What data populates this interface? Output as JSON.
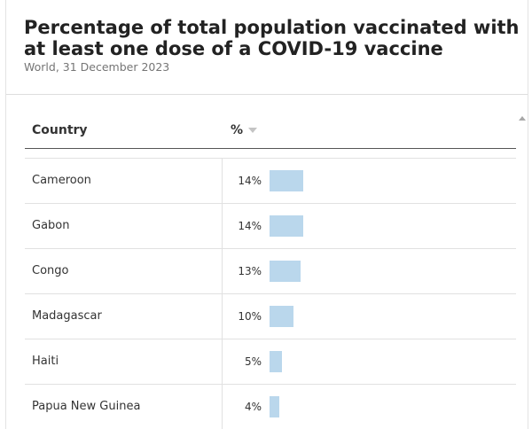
{
  "header": {
    "title": "Percentage of total population vaccinated with at least one dose of a COVID-19 vaccine",
    "subtitle": "World, 31 December 2023"
  },
  "table": {
    "col_country": "Country",
    "col_value": "%",
    "rows": [
      {
        "country": "Cameroon",
        "label": "14%",
        "value": 14
      },
      {
        "country": "Gabon",
        "label": "14%",
        "value": 14
      },
      {
        "country": "Congo",
        "label": "13%",
        "value": 13
      },
      {
        "country": "Madagascar",
        "label": "10%",
        "value": 10
      },
      {
        "country": "Haiti",
        "label": "5%",
        "value": 5
      },
      {
        "country": "Papua New Guinea",
        "label": "4%",
        "value": 4
      }
    ]
  },
  "colors": {
    "bar": "#bad7ec",
    "sort_icon": "#c4c4c4"
  },
  "chart_data": {
    "type": "table",
    "title": "Percentage of total population vaccinated with at least one dose of a COVID-19 vaccine",
    "subtitle": "World, 31 December 2023",
    "columns": [
      "Country",
      "%"
    ],
    "categories": [
      "Cameroon",
      "Gabon",
      "Congo",
      "Madagascar",
      "Haiti",
      "Papua New Guinea"
    ],
    "values": [
      14,
      14,
      13,
      10,
      5,
      4
    ],
    "value_labels": [
      "14%",
      "14%",
      "13%",
      "10%",
      "5%",
      "4%"
    ]
  }
}
